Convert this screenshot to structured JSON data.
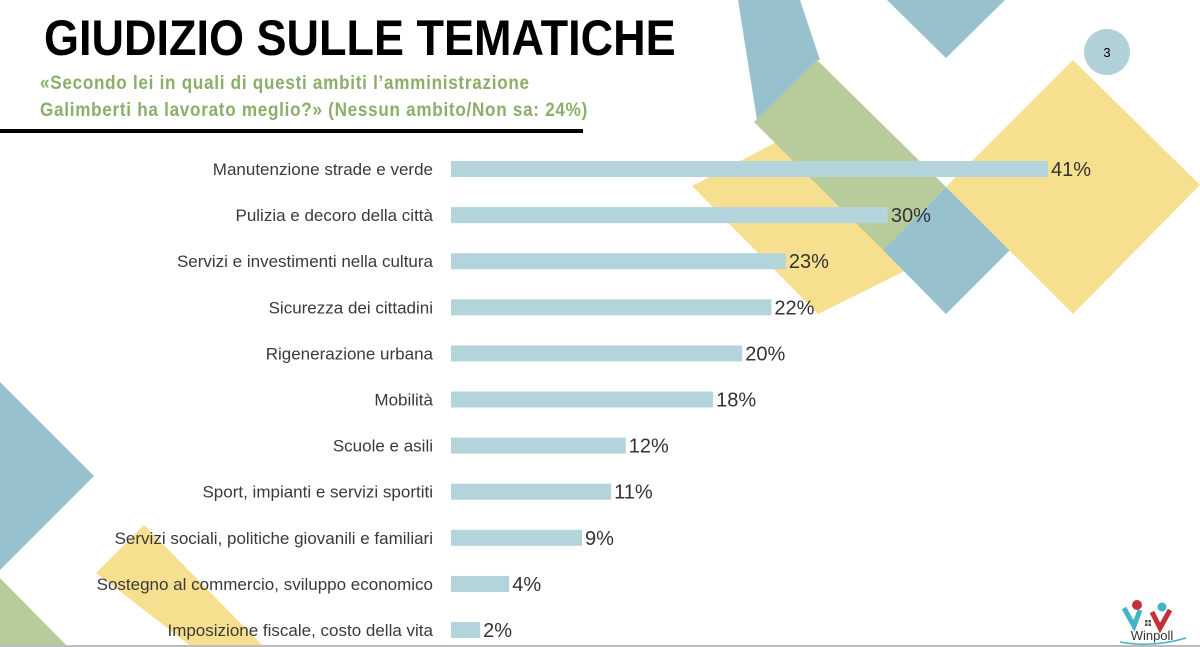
{
  "slide": {
    "title": "GIUDIZIO SULLE TEMATICHE",
    "subtitle_line1": "«Secondo lei in quali di questi ambiti l’amministrazione",
    "subtitle_line2": "Galimberti ha lavorato meglio?» (Nessun ambito/Non sa: 24%)",
    "page_number": "3",
    "logo_text": "Winpoll"
  },
  "colors": {
    "bar": "#b3d4da",
    "teal": "#96c1cd",
    "yellow": "#f6e08f",
    "green": "#b7cb9b",
    "subtitle": "#8bae6a"
  },
  "chart_data": {
    "type": "bar",
    "orientation": "horizontal",
    "categories": [
      "Manutenzione strade e verde",
      "Pulizia e decoro della città",
      "Servizi e investimenti nella cultura",
      "Sicurezza dei cittadini",
      "Rigenerazione urbana",
      "Mobilità",
      "Scuole e asili",
      "Sport, impianti e servizi sportiti",
      "Servizi sociali, politiche giovanili e familiari",
      "Sostegno al commercio, sviluppo economico",
      "Imposizione fiscale, costo della vita"
    ],
    "values": [
      41,
      30,
      23,
      22,
      20,
      18,
      12,
      11,
      9,
      4,
      2
    ],
    "value_labels": [
      "41%",
      "30%",
      "23%",
      "22%",
      "20%",
      "18%",
      "12%",
      "11%",
      "9%",
      "4%",
      "2%"
    ],
    "unit": "%",
    "title": "GIUDIZIO SULLE TEMATICHE",
    "xlabel": "",
    "ylabel": "",
    "xlim": [
      0,
      41
    ],
    "grid": false,
    "legend": "none"
  }
}
